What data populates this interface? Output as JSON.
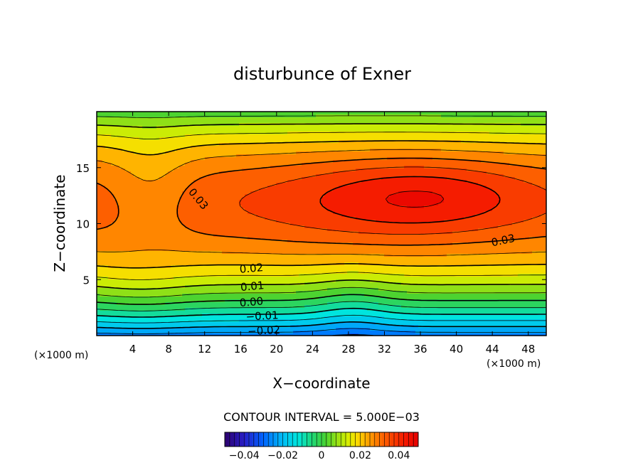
{
  "chart_data": {
    "type": "heatmap",
    "title": "disturbunce of Exner",
    "xlabel": "X−coordinate",
    "ylabel": "Z−coordinate",
    "x_unit": "(×1000 m)",
    "x_unit_right": "(×1000 m)",
    "xlim": [
      0,
      50
    ],
    "ylim": [
      0,
      20
    ],
    "x_ticks": [
      4,
      8,
      12,
      16,
      20,
      24,
      28,
      32,
      36,
      40,
      44,
      48
    ],
    "y_ticks": [
      5,
      10,
      15
    ],
    "contour_interval_text": "CONTOUR INTERVAL = 5.000E−03",
    "contour_interval": 0.005,
    "contour_labels": [
      {
        "text": "0.03",
        "x": 11.3,
        "z": 12.2,
        "angle": 50
      },
      {
        "text": "0.03",
        "x": 45.2,
        "z": 8.5,
        "angle": -12
      },
      {
        "text": "0.02",
        "x": 17.2,
        "z": 6.0,
        "angle": -5
      },
      {
        "text": "0.01",
        "x": 17.3,
        "z": 4.4,
        "angle": -5
      },
      {
        "text": "0.00",
        "x": 17.2,
        "z": 3.0,
        "angle": -5
      },
      {
        "text": "−0.01",
        "x": 18.4,
        "z": 1.75,
        "angle": -3
      },
      {
        "text": "−0.02",
        "x": 18.6,
        "z": 0.45,
        "angle": -3
      }
    ],
    "maximum": {
      "x": 38,
      "z": 12,
      "value": 0.045
    },
    "colorbar": {
      "min": -0.05,
      "max": 0.05,
      "ticks": [
        "−0.04",
        "−0.02",
        "0",
        "0.02",
        "0.04"
      ],
      "tick_values": [
        -0.04,
        -0.02,
        0,
        0.02,
        0.04
      ]
    }
  }
}
